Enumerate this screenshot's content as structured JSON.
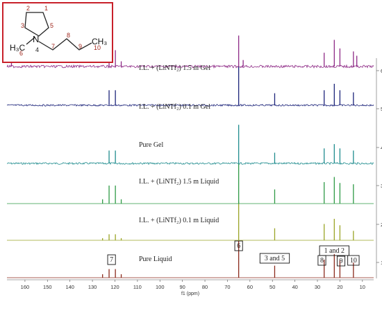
{
  "chart_data": {
    "type": "line",
    "title": "",
    "xlabel": "f1 (ppm)",
    "ylabel": "",
    "xlim": [
      168,
      5
    ],
    "x_reversed": true,
    "x_ticks": [
      160,
      150,
      140,
      130,
      120,
      110,
      100,
      90,
      80,
      70,
      60,
      50,
      40,
      30,
      20,
      10
    ],
    "offset_tick_labels": [
      "1",
      "2",
      "3",
      "4",
      "5",
      "6"
    ],
    "series": [
      {
        "label": "Pure Liquid",
        "color": "#8b2a1c",
        "noise": 0,
        "peaks": [
          {
            "x": 125.5,
            "h": 0.08
          },
          {
            "x": 122.6,
            "h": 0.2
          },
          {
            "x": 119.8,
            "h": 0.2
          },
          {
            "x": 117.2,
            "h": 0.08
          },
          {
            "x": 65,
            "h": 0.85
          },
          {
            "x": 49,
            "h": 0.28
          },
          {
            "x": 27,
            "h": 0.42
          },
          {
            "x": 22.5,
            "h": 0.55
          },
          {
            "x": 20,
            "h": 0.4
          },
          {
            "x": 14,
            "h": 0.35
          }
        ]
      },
      {
        "label": "I.L. + (LiNTf₂) 0.1 m Liquid",
        "color": "#9aa426",
        "noise": 0,
        "peaks": [
          {
            "x": 125.5,
            "h": 0.05
          },
          {
            "x": 122.6,
            "h": 0.14
          },
          {
            "x": 119.8,
            "h": 0.14
          },
          {
            "x": 117.2,
            "h": 0.05
          },
          {
            "x": 65,
            "h": 0.9
          },
          {
            "x": 49,
            "h": 0.28
          },
          {
            "x": 27,
            "h": 0.38
          },
          {
            "x": 22.5,
            "h": 0.5
          },
          {
            "x": 20,
            "h": 0.35
          },
          {
            "x": 14,
            "h": 0.22
          }
        ]
      },
      {
        "label": "I.L. + (LiNTf₂) 1.5 m Liquid",
        "color": "#2e9a45",
        "noise": 0,
        "peaks": [
          {
            "x": 125.5,
            "h": 0.1
          },
          {
            "x": 122.6,
            "h": 0.42
          },
          {
            "x": 119.8,
            "h": 0.42
          },
          {
            "x": 117.2,
            "h": 0.1
          },
          {
            "x": 65,
            "h": 0.95
          },
          {
            "x": 49,
            "h": 0.33
          },
          {
            "x": 27,
            "h": 0.5
          },
          {
            "x": 22.5,
            "h": 0.62
          },
          {
            "x": 20,
            "h": 0.48
          },
          {
            "x": 14,
            "h": 0.45
          }
        ]
      },
      {
        "label": "Pure Gel",
        "color": "#1f8c8e",
        "noise": 0.022,
        "peaks": [
          {
            "x": 122.6,
            "h": 0.3
          },
          {
            "x": 119.8,
            "h": 0.3
          },
          {
            "x": 65,
            "h": 0.9
          },
          {
            "x": 49,
            "h": 0.25
          },
          {
            "x": 27,
            "h": 0.35
          },
          {
            "x": 22.5,
            "h": 0.45
          },
          {
            "x": 20,
            "h": 0.35
          },
          {
            "x": 14,
            "h": 0.3
          }
        ]
      },
      {
        "label": "I.L. + (LiNTf₂) 0.1 m Gel",
        "color": "#1c247a",
        "noise": 0.02,
        "peaks": [
          {
            "x": 122.6,
            "h": 0.35
          },
          {
            "x": 119.8,
            "h": 0.35
          },
          {
            "x": 65,
            "h": 0.9
          },
          {
            "x": 49,
            "h": 0.28
          },
          {
            "x": 27,
            "h": 0.35
          },
          {
            "x": 22.5,
            "h": 0.5
          },
          {
            "x": 20,
            "h": 0.35
          },
          {
            "x": 14,
            "h": 0.3
          }
        ]
      },
      {
        "label": "I.L. + (LiNTf₂) 1.5 m Gel",
        "color": "#8e2a86",
        "noise": 0.03,
        "peaks": [
          {
            "x": 166,
            "h": 0.38
          },
          {
            "x": 122.6,
            "h": 0.38
          },
          {
            "x": 119.8,
            "h": 0.38
          },
          {
            "x": 117.2,
            "h": 0.12
          },
          {
            "x": 65,
            "h": 0.72
          },
          {
            "x": 63,
            "h": 0.15
          },
          {
            "x": 27,
            "h": 0.32
          },
          {
            "x": 22.5,
            "h": 0.62
          },
          {
            "x": 20,
            "h": 0.42
          },
          {
            "x": 14,
            "h": 0.35
          },
          {
            "x": 12.5,
            "h": 0.25
          }
        ]
      }
    ],
    "annotations": [
      {
        "text": "7",
        "x": 121.5
      },
      {
        "text": "6",
        "x": 65
      },
      {
        "text": "3 and 5",
        "x": 49
      },
      {
        "text": "8",
        "x": 28
      },
      {
        "text": "1 and 2",
        "x": 22.5
      },
      {
        "text": "9",
        "x": 19.5
      },
      {
        "text": "10",
        "x": 14
      }
    ],
    "structure": {
      "atom_labels": [
        "N",
        "H₃C",
        "CH₃"
      ],
      "numbers": [
        "1",
        "2",
        "3",
        "4",
        "5",
        "6",
        "7",
        "8",
        "9",
        "10"
      ]
    }
  }
}
